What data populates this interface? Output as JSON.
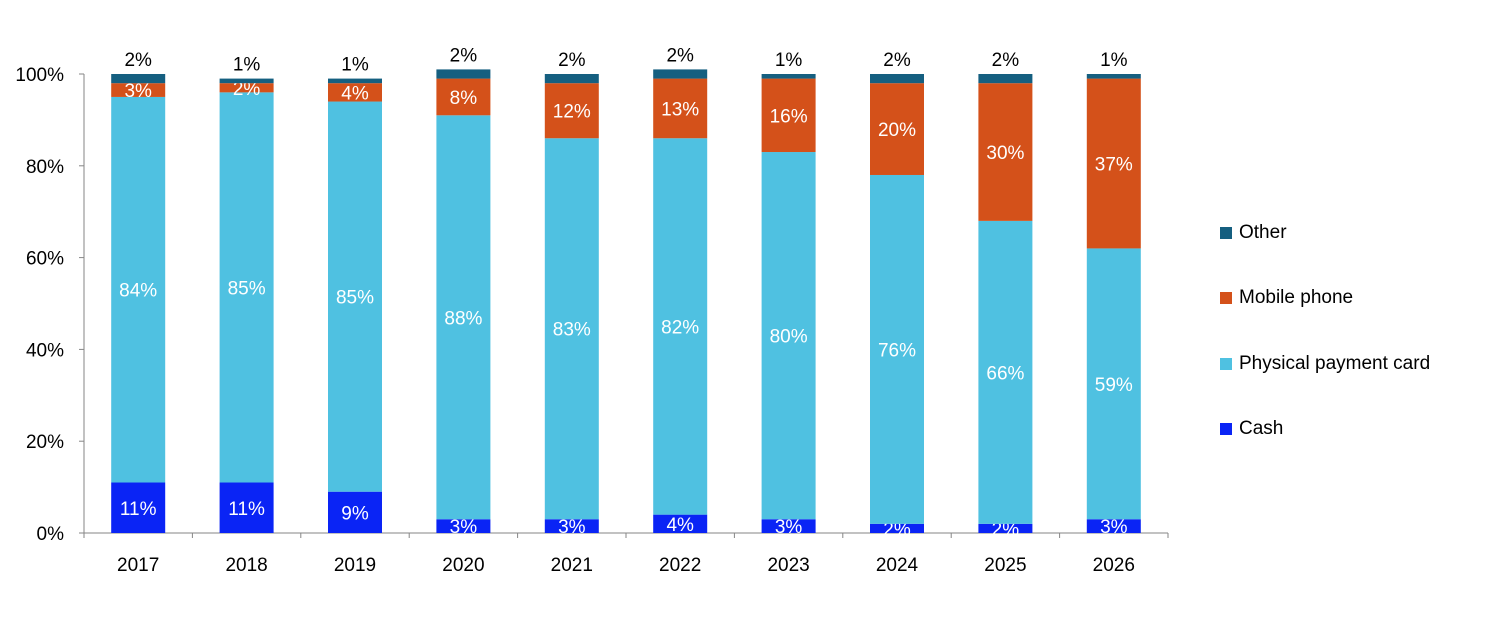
{
  "chart_data": {
    "type": "bar",
    "stacked": true,
    "percent_scale": true,
    "categories": [
      "2017",
      "2018",
      "2019",
      "2020",
      "2021",
      "2022",
      "2023",
      "2024",
      "2025",
      "2026"
    ],
    "series": [
      {
        "name": "Cash",
        "color": "#0A24F5",
        "values": [
          11,
          11,
          9,
          3,
          3,
          4,
          3,
          2,
          2,
          3
        ]
      },
      {
        "name": "Physical payment card",
        "color": "#4FC1E1",
        "values": [
          84,
          85,
          85,
          88,
          83,
          82,
          80,
          76,
          66,
          59
        ]
      },
      {
        "name": "Mobile phone",
        "color": "#D4511A",
        "values": [
          3,
          2,
          4,
          8,
          12,
          13,
          16,
          20,
          30,
          37
        ]
      },
      {
        "name": "Other",
        "color": "#155F80",
        "values": [
          2,
          1,
          1,
          2,
          2,
          2,
          1,
          2,
          2,
          1
        ]
      }
    ],
    "y_ticks": [
      "0%",
      "20%",
      "40%",
      "60%",
      "80%",
      "100%"
    ],
    "ylim": [
      0,
      100
    ],
    "grid": false,
    "legend_position": "right",
    "title": "",
    "xlabel": "",
    "ylabel": ""
  },
  "legend": {
    "items": [
      {
        "label": "Other",
        "color": "#155F80"
      },
      {
        "label": "Mobile phone",
        "color": "#D4511A"
      },
      {
        "label": "Physical payment card",
        "color": "#4FC1E1"
      },
      {
        "label": "Cash",
        "color": "#0A24F5"
      }
    ]
  }
}
